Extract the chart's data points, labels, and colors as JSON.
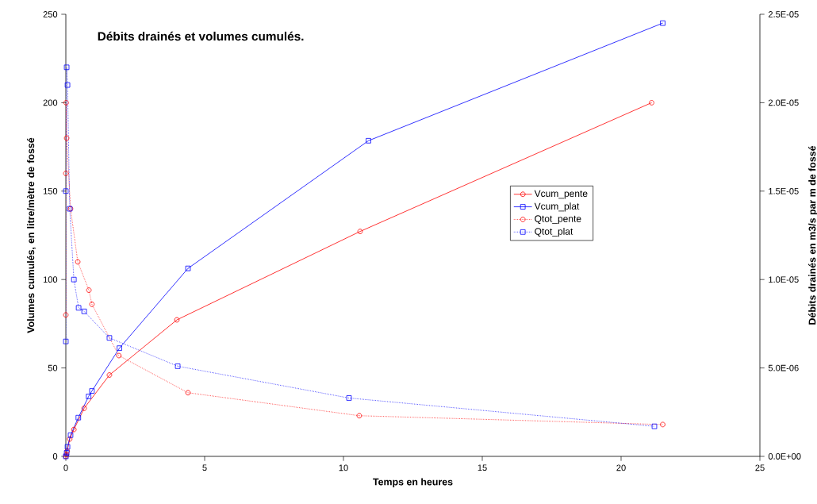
{
  "chart_data": {
    "type": "line",
    "title": "Débits drainés et volumes cumulés.",
    "xlabel": "Temps en heures",
    "ylabel": "Volumes cumulés, en litre/mètre de fossé",
    "y2label": "Débits drainés en m3/s par m de fossé",
    "xlim": [
      0,
      25
    ],
    "xticks": [
      0,
      5,
      10,
      15,
      20,
      25
    ],
    "ylim": [
      0,
      250
    ],
    "yticks": [
      0,
      50,
      100,
      150,
      200,
      250
    ],
    "y2lim": [
      0,
      2.5e-05
    ],
    "y2ticks": [
      {
        "value": 0,
        "label": "0.0E+00"
      },
      {
        "value": 5e-06,
        "label": "5.0E-06"
      },
      {
        "value": 1e-05,
        "label": "1.0E-05"
      },
      {
        "value": 1.5e-05,
        "label": "1.5E-05"
      },
      {
        "value": 2e-05,
        "label": "2.0E-05"
      },
      {
        "value": 2.5e-05,
        "label": "2.5E-05"
      }
    ],
    "legend": "right",
    "series": [
      {
        "name": "Vcum_pente",
        "color": "#ff0000",
        "marker": "circle",
        "line_style": "solid",
        "x": [
          0,
          0.02,
          0.05,
          0.14,
          0.29,
          0.66,
          1.57,
          4.0,
          10.6,
          21.1
        ],
        "values": [
          0,
          1,
          3,
          9.8,
          15.2,
          27.2,
          46,
          77.2,
          127.2,
          200
        ]
      },
      {
        "name": "Vcum_plat",
        "color": "#0000ff",
        "marker": "square",
        "line_style": "solid",
        "x": [
          0,
          0.03,
          0.06,
          0.17,
          0.45,
          0.82,
          0.94,
          1.93,
          4.4,
          10.9,
          21.5
        ],
        "values": [
          0,
          2,
          5.4,
          12,
          21.9,
          33.9,
          37,
          61.2,
          106.3,
          178.5,
          245
        ]
      },
      {
        "name": "Qtot_pente",
        "color": "#ff0000",
        "marker": "circle",
        "line_style": "dotted",
        "axis": "y2",
        "x": [
          0,
          0,
          0.01,
          0.03,
          0.17,
          0.43,
          0.83,
          0.94,
          1.91,
          4.4,
          10.57,
          21.5
        ],
        "values": [
          8e-06,
          1.6e-05,
          2e-05,
          1.8e-05,
          1.4e-05,
          1.1e-05,
          9.4e-06,
          8.6e-06,
          5.7e-06,
          3.6e-06,
          2.3e-06,
          1.8e-06
        ]
      },
      {
        "name": "Qtot_plat",
        "color": "#0000ff",
        "marker": "square",
        "line_style": "dotted",
        "axis": "y2",
        "x": [
          0,
          0,
          0.03,
          0.06,
          0.14,
          0.29,
          0.46,
          0.66,
          1.57,
          4.03,
          10.2,
          21.2
        ],
        "values": [
          6.5e-06,
          1.5e-05,
          2.2e-05,
          2.1e-05,
          1.4e-05,
          1e-05,
          8.4e-06,
          8.2e-06,
          6.7e-06,
          5.1e-06,
          3.3e-06,
          1.7e-06
        ]
      }
    ]
  }
}
